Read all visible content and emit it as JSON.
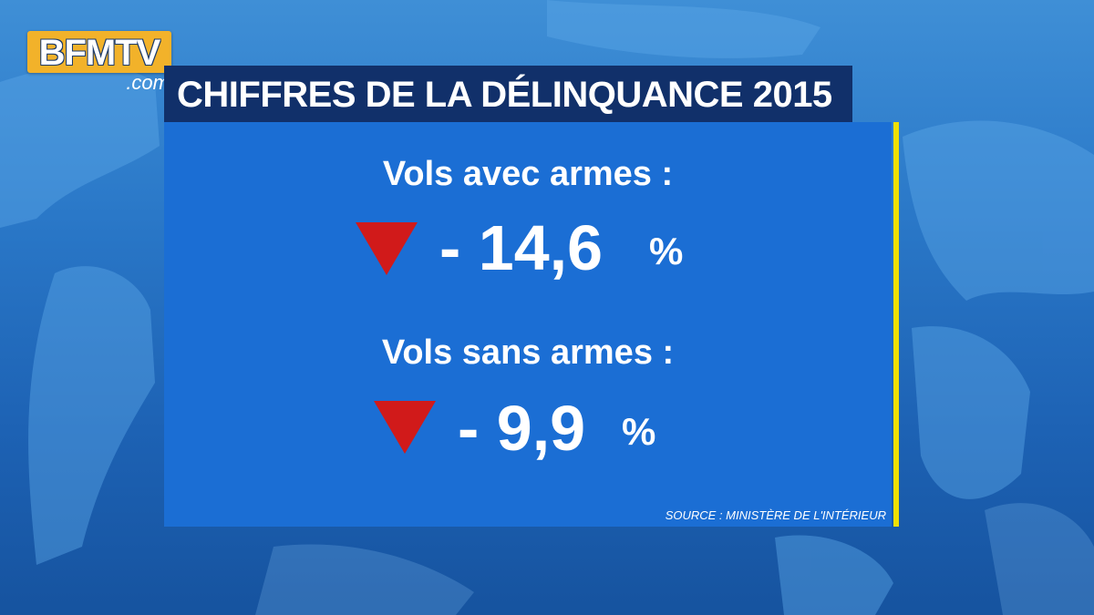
{
  "logo": {
    "main": "BFMTV",
    "sub": ".com"
  },
  "title": "CHIFFRES DE LA DÉLINQUANCE 2015",
  "stats": [
    {
      "label": "Vols avec armes :",
      "value": "- 14,6",
      "unit": "%",
      "trend_icon": "down-triangle-icon"
    },
    {
      "label": "Vols sans armes :",
      "value": "- 9,9",
      "unit": "%",
      "trend_icon": "down-triangle-icon"
    }
  ],
  "source": "SOURCE : MINISTÈRE DE L'INTÉRIEUR",
  "colors": {
    "panel": "#1b6ed4",
    "title_bar": "#11306a",
    "accent_line": "#f0e000",
    "trend_down": "#d11a1a",
    "logo": "#f2b22a"
  }
}
